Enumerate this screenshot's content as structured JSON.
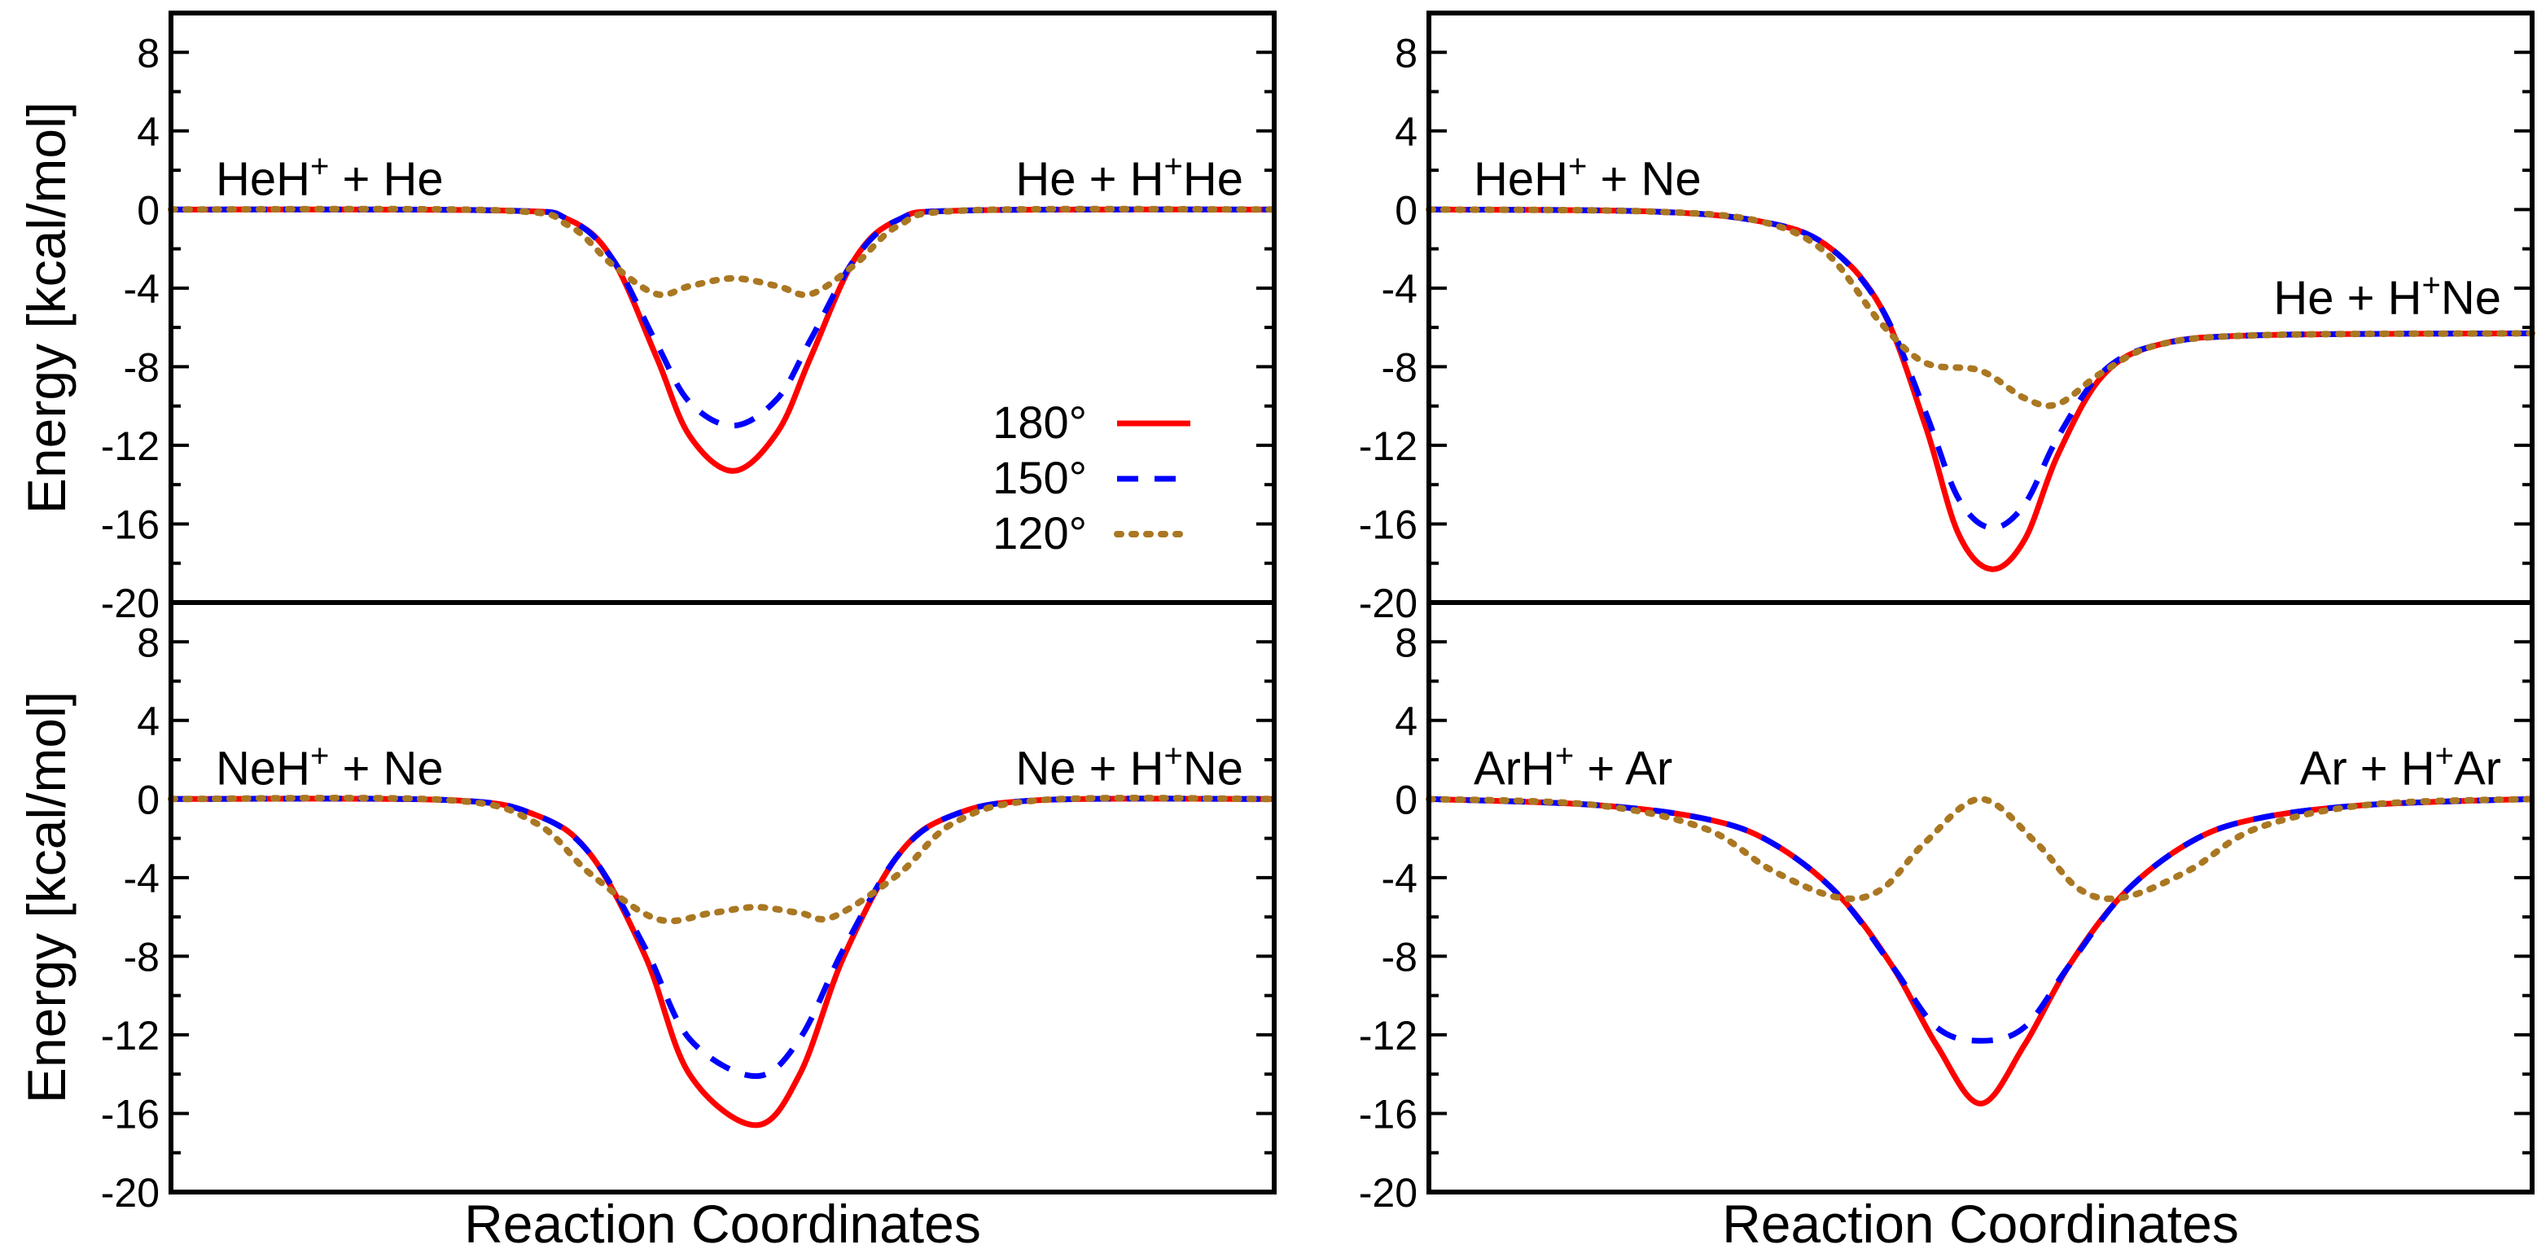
{
  "chart_data": [
    {
      "type": "line",
      "panel": "top-left",
      "reactants": {
        "base": "HeH",
        "sup": "+",
        "rest": " + He"
      },
      "products": {
        "base": "He + H",
        "sup": "+",
        "rest": "He"
      },
      "ylabel": "Energy [kcal/mol]",
      "xlabel": "",
      "ylim": [
        -20,
        10
      ],
      "yticks": [
        "8",
        "4",
        "0",
        "-4",
        "-8",
        "-12",
        "-16",
        "-20"
      ],
      "x_range": [
        0,
        1
      ],
      "legend_position": "center-right",
      "series": [
        {
          "name": "180°",
          "center": 0.51,
          "points": [
            [
              0,
              0
            ],
            [
              0.3,
              -0.05
            ],
            [
              0.36,
              -0.5
            ],
            [
              0.4,
              -2.5
            ],
            [
              0.44,
              -7.5
            ],
            [
              0.47,
              -11.5
            ],
            [
              0.51,
              -13.3
            ],
            [
              0.55,
              -11.3
            ],
            [
              0.58,
              -7.5
            ],
            [
              0.62,
              -2.5
            ],
            [
              0.66,
              -0.5
            ],
            [
              0.72,
              -0.05
            ],
            [
              1,
              0
            ]
          ]
        },
        {
          "name": "150°",
          "center": 0.51,
          "points": [
            [
              0,
              0
            ],
            [
              0.3,
              -0.05
            ],
            [
              0.36,
              -0.5
            ],
            [
              0.4,
              -2.5
            ],
            [
              0.44,
              -6.8
            ],
            [
              0.47,
              -9.8
            ],
            [
              0.51,
              -11.0
            ],
            [
              0.55,
              -9.6
            ],
            [
              0.58,
              -6.6
            ],
            [
              0.62,
              -2.5
            ],
            [
              0.66,
              -0.5
            ],
            [
              0.72,
              -0.05
            ],
            [
              1,
              0
            ]
          ]
        },
        {
          "name": "120°",
          "center": 0.51,
          "points": [
            [
              0,
              0
            ],
            [
              0.3,
              -0.05
            ],
            [
              0.36,
              -0.8
            ],
            [
              0.4,
              -2.8
            ],
            [
              0.44,
              -4.3
            ],
            [
              0.47,
              -3.9
            ],
            [
              0.51,
              -3.5
            ],
            [
              0.55,
              -3.9
            ],
            [
              0.58,
              -4.3
            ],
            [
              0.62,
              -2.8
            ],
            [
              0.66,
              -0.8
            ],
            [
              0.72,
              -0.05
            ],
            [
              1,
              0
            ]
          ]
        }
      ]
    },
    {
      "type": "line",
      "panel": "top-right",
      "reactants": {
        "base": "HeH",
        "sup": "+",
        "rest": " + Ne"
      },
      "products": {
        "base": "He + H",
        "sup": "+",
        "rest": "Ne"
      },
      "ylabel": "",
      "xlabel": "",
      "ylim": [
        -20,
        10
      ],
      "yticks": [
        "8",
        "4",
        "0",
        "-4",
        "-8",
        "-12",
        "-16",
        "-20"
      ],
      "x_range": [
        0,
        1
      ],
      "series": [
        {
          "name": "180°",
          "points": [
            [
              0,
              0
            ],
            [
              0.2,
              -0.1
            ],
            [
              0.3,
              -0.6
            ],
            [
              0.36,
              -1.8
            ],
            [
              0.41,
              -5.0
            ],
            [
              0.45,
              -11.0
            ],
            [
              0.48,
              -16.5
            ],
            [
              0.51,
              -18.3
            ],
            [
              0.54,
              -16.8
            ],
            [
              0.57,
              -12.5
            ],
            [
              0.61,
              -8.5
            ],
            [
              0.66,
              -6.9
            ],
            [
              0.75,
              -6.4
            ],
            [
              1,
              -6.3
            ]
          ]
        },
        {
          "name": "150°",
          "points": [
            [
              0,
              0
            ],
            [
              0.2,
              -0.1
            ],
            [
              0.3,
              -0.6
            ],
            [
              0.36,
              -1.8
            ],
            [
              0.41,
              -5.0
            ],
            [
              0.45,
              -10.3
            ],
            [
              0.48,
              -14.7
            ],
            [
              0.51,
              -16.2
            ],
            [
              0.54,
              -15.0
            ],
            [
              0.57,
              -11.6
            ],
            [
              0.61,
              -8.3
            ],
            [
              0.66,
              -6.9
            ],
            [
              0.75,
              -6.4
            ],
            [
              1,
              -6.3
            ]
          ]
        },
        {
          "name": "120°",
          "points": [
            [
              0,
              0
            ],
            [
              0.2,
              -0.1
            ],
            [
              0.3,
              -0.6
            ],
            [
              0.36,
              -2.2
            ],
            [
              0.41,
              -5.8
            ],
            [
              0.45,
              -7.8
            ],
            [
              0.5,
              -8.2
            ],
            [
              0.54,
              -9.6
            ],
            [
              0.57,
              -9.9
            ],
            [
              0.61,
              -8.3
            ],
            [
              0.66,
              -6.9
            ],
            [
              0.75,
              -6.4
            ],
            [
              1,
              -6.3
            ]
          ]
        }
      ]
    },
    {
      "type": "line",
      "panel": "bottom-left",
      "reactants": {
        "base": "NeH",
        "sup": "+",
        "rest": " + Ne"
      },
      "products": {
        "base": "Ne + H",
        "sup": "+",
        "rest": "Ne"
      },
      "ylabel": "Energy [kcal/mol]",
      "xlabel": "Reaction Coordinates",
      "ylim": [
        -20,
        10
      ],
      "yticks": [
        "8",
        "4",
        "0",
        "-4",
        "-8",
        "-12",
        "-16",
        "-20"
      ],
      "x_range": [
        0,
        1
      ],
      "series": [
        {
          "name": "180°",
          "points": [
            [
              0,
              0
            ],
            [
              0.25,
              -0.05
            ],
            [
              0.33,
              -0.8
            ],
            [
              0.38,
              -2.8
            ],
            [
              0.43,
              -8.0
            ],
            [
              0.47,
              -14.0
            ],
            [
              0.53,
              -16.6
            ],
            [
              0.57,
              -14.0
            ],
            [
              0.61,
              -8.0
            ],
            [
              0.66,
              -2.8
            ],
            [
              0.71,
              -0.8
            ],
            [
              0.79,
              -0.05
            ],
            [
              1,
              0
            ]
          ]
        },
        {
          "name": "150°",
          "points": [
            [
              0,
              0
            ],
            [
              0.25,
              -0.05
            ],
            [
              0.33,
              -0.8
            ],
            [
              0.38,
              -2.8
            ],
            [
              0.43,
              -7.6
            ],
            [
              0.47,
              -12.2
            ],
            [
              0.53,
              -14.1
            ],
            [
              0.57,
              -12.2
            ],
            [
              0.61,
              -7.6
            ],
            [
              0.66,
              -2.8
            ],
            [
              0.71,
              -0.8
            ],
            [
              0.79,
              -0.05
            ],
            [
              1,
              0
            ]
          ]
        },
        {
          "name": "120°",
          "points": [
            [
              0,
              0
            ],
            [
              0.25,
              -0.05
            ],
            [
              0.33,
              -1.2
            ],
            [
              0.38,
              -3.8
            ],
            [
              0.44,
              -6.1
            ],
            [
              0.49,
              -5.8
            ],
            [
              0.53,
              -5.5
            ],
            [
              0.57,
              -5.8
            ],
            [
              0.6,
              -6.0
            ],
            [
              0.66,
              -3.8
            ],
            [
              0.71,
              -1.2
            ],
            [
              0.79,
              -0.05
            ],
            [
              1,
              0
            ]
          ]
        }
      ]
    },
    {
      "type": "line",
      "panel": "bottom-right",
      "reactants": {
        "base": "ArH",
        "sup": "+",
        "rest": " + Ar"
      },
      "products": {
        "base": "Ar + H",
        "sup": "+",
        "rest": "Ar"
      },
      "ylabel": "",
      "xlabel": "Reaction Coordinates",
      "ylim": [
        -20,
        10
      ],
      "yticks": [
        "8",
        "4",
        "0",
        "-4",
        "-8",
        "-12",
        "-16",
        "-20"
      ],
      "x_range": [
        0,
        1
      ],
      "series": [
        {
          "name": "180°",
          "points": [
            [
              0,
              0
            ],
            [
              0.15,
              -0.3
            ],
            [
              0.25,
              -1.0
            ],
            [
              0.31,
              -2.2
            ],
            [
              0.37,
              -4.8
            ],
            [
              0.42,
              -8.5
            ],
            [
              0.46,
              -12.5
            ],
            [
              0.5,
              -15.5
            ],
            [
              0.54,
              -12.5
            ],
            [
              0.58,
              -8.5
            ],
            [
              0.63,
              -4.8
            ],
            [
              0.69,
              -2.2
            ],
            [
              0.75,
              -1.0
            ],
            [
              0.85,
              -0.3
            ],
            [
              1,
              0
            ]
          ]
        },
        {
          "name": "150°",
          "points": [
            [
              0,
              0
            ],
            [
              0.15,
              -0.3
            ],
            [
              0.25,
              -1.0
            ],
            [
              0.31,
              -2.2
            ],
            [
              0.37,
              -4.8
            ],
            [
              0.42,
              -8.5
            ],
            [
              0.46,
              -11.6
            ],
            [
              0.5,
              -12.3
            ],
            [
              0.54,
              -11.6
            ],
            [
              0.58,
              -8.5
            ],
            [
              0.63,
              -4.8
            ],
            [
              0.69,
              -2.2
            ],
            [
              0.75,
              -1.0
            ],
            [
              0.85,
              -0.3
            ],
            [
              1,
              0
            ]
          ]
        },
        {
          "name": "120°",
          "points": [
            [
              0,
              0
            ],
            [
              0.15,
              -0.3
            ],
            [
              0.25,
              -1.5
            ],
            [
              0.31,
              -3.6
            ],
            [
              0.37,
              -5.0
            ],
            [
              0.41,
              -4.6
            ],
            [
              0.45,
              -2.2
            ],
            [
              0.5,
              0
            ],
            [
              0.55,
              -2.2
            ],
            [
              0.59,
              -4.6
            ],
            [
              0.63,
              -5.0
            ],
            [
              0.69,
              -3.6
            ],
            [
              0.75,
              -1.5
            ],
            [
              0.85,
              -0.3
            ],
            [
              1,
              0
            ]
          ]
        }
      ]
    }
  ],
  "legend": {
    "entries": [
      {
        "label": "180°",
        "color": "#ff0000",
        "dash": "solid"
      },
      {
        "label": "150°",
        "color": "#0000ff",
        "dash": "dashed"
      },
      {
        "label": "120°",
        "color": "#aa7722",
        "dash": "dotted"
      }
    ]
  }
}
